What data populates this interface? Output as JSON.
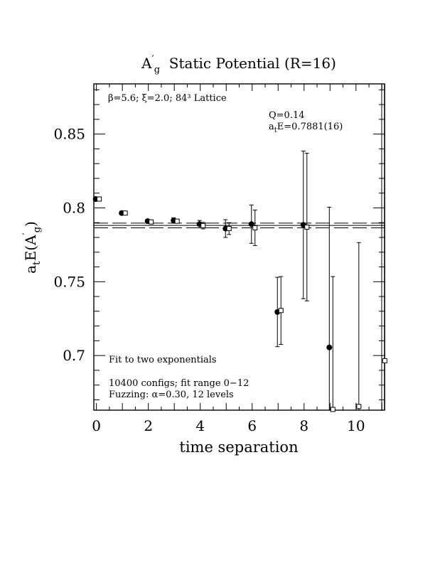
{
  "chart_data": {
    "type": "scatter",
    "title": "A′g  Static Potential (R=16)",
    "title_parts": {
      "prefix": "A",
      "prime": "′",
      "sub": "g",
      "rest": "  Static Potential (R=16)"
    },
    "xlabel": "time separation",
    "ylabel": "atE(A′g)",
    "ylabel_parts": {
      "a": "a",
      "t": "t",
      "e": "E(A",
      "prime": "′",
      "g": "g",
      "close": ")"
    },
    "xlim": [
      -0.1,
      11.1
    ],
    "ylim": [
      0.663,
      0.884
    ],
    "x_ticks": [
      0,
      2,
      4,
      6,
      8,
      10
    ],
    "x_tick_labels": [
      "0",
      "2",
      "4",
      "6",
      "8",
      "10"
    ],
    "y_ticks": [
      0.7,
      0.75,
      0.8,
      0.85
    ],
    "y_tick_labels": [
      "0.7",
      "0.75",
      "0.8",
      "0.85"
    ],
    "lattice_text": "β=5.6; ξ=2.0; 84³ Lattice",
    "q_text": "Q=0.14",
    "energy_text": {
      "a": "a",
      "t": "t",
      "rest": "E=0.7881(16)"
    },
    "fit_text": "Fit to two exponentials",
    "configs_text": "10400 configs; fit range 0−12",
    "fuzzing_text": "Fuzzing: α=0.30, 12 levels",
    "fit": {
      "center": 0.7881,
      "upper": 0.7897,
      "lower": 0.7865
    },
    "series": [
      {
        "marker": "filled-circle",
        "points": [
          {
            "x": 0,
            "y": 0.806,
            "err": 0.0006
          },
          {
            "x": 1,
            "y": 0.7965,
            "err": 0.0009
          },
          {
            "x": 2,
            "y": 0.791,
            "err": 0.0012
          },
          {
            "x": 3,
            "y": 0.7915,
            "err": 0.0018
          },
          {
            "x": 4,
            "y": 0.789,
            "err": 0.0025
          },
          {
            "x": 5,
            "y": 0.786,
            "err": 0.006
          },
          {
            "x": 6,
            "y": 0.789,
            "err": 0.013
          },
          {
            "x": 7,
            "y": 0.7295,
            "err": 0.0235
          },
          {
            "x": 8,
            "y": 0.7885,
            "err": 0.05
          },
          {
            "x": 9,
            "y": 0.7055,
            "err": 0.095
          }
        ]
      },
      {
        "marker": "open-square",
        "points": [
          {
            "x": 0,
            "y": 0.806,
            "err": 0.0005
          },
          {
            "x": 1,
            "y": 0.7965,
            "err": 0.0008
          },
          {
            "x": 2,
            "y": 0.7905,
            "err": 0.001
          },
          {
            "x": 3,
            "y": 0.791,
            "err": 0.0013
          },
          {
            "x": 4,
            "y": 0.788,
            "err": 0.0022
          },
          {
            "x": 5,
            "y": 0.786,
            "err": 0.004
          },
          {
            "x": 6,
            "y": 0.7865,
            "err": 0.012
          },
          {
            "x": 7,
            "y": 0.7305,
            "err": 0.023
          },
          {
            "x": 8,
            "y": 0.787,
            "err": 0.05
          },
          {
            "x": 9,
            "y": 0.6635,
            "err": 0.09
          },
          {
            "x": 10,
            "y": 0.6655,
            "err": 0.111
          },
          {
            "x": 11,
            "y": 0.6965,
            "err": 0.2
          }
        ]
      }
    ]
  }
}
